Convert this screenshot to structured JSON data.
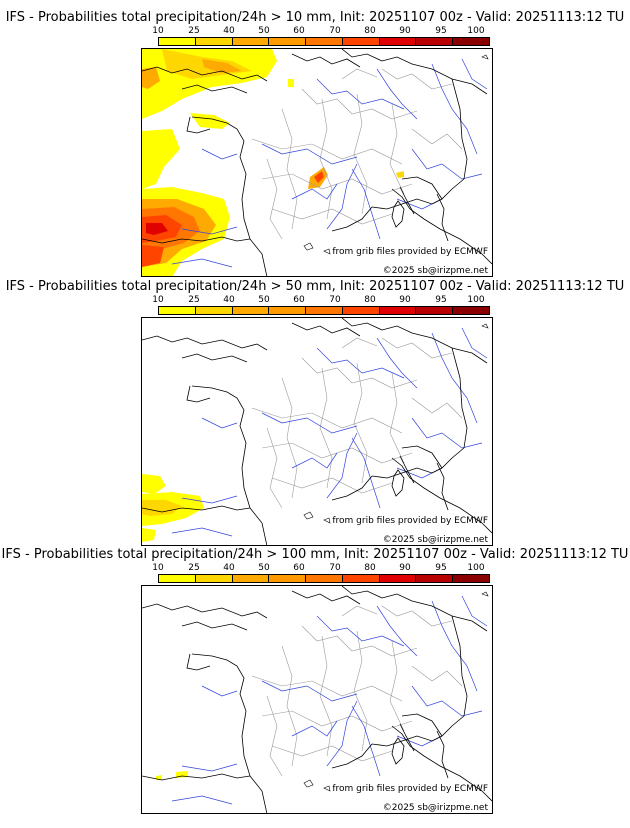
{
  "legend": {
    "ticks": [
      "10",
      "25",
      "40",
      "50",
      "60",
      "70",
      "80",
      "90",
      "95",
      "100"
    ],
    "colors": [
      "#ffff00",
      "#ffd700",
      "#ffaa00",
      "#ff9900",
      "#ff7700",
      "#ff4400",
      "#e00000",
      "#b80000",
      "#8a0000",
      "#600000"
    ]
  },
  "panels": [
    {
      "title": "IFS - Probabilities total precipitation/24h > 10 mm, Init: 20251107 00z - Valid: 20251113:12 TU",
      "source_credit": "from grib files provided by ECMWF",
      "copyright": "©2025 sb@irizpme.net"
    },
    {
      "title": "IFS - Probabilities total precipitation/24h > 50 mm, Init: 20251107 00z - Valid: 20251113:12 TU",
      "source_credit": "from grib files provided by ECMWF",
      "copyright": "©2025 sb@irizpme.net"
    },
    {
      "title": "IFS - Probabilities total precipitation/24h > 100 mm, Init: 20251107 00z - Valid: 20251113:12 TU",
      "source_credit": "from grib files provided by ECMWF",
      "copyright": "©2025 sb@irizpme.net"
    }
  ]
}
